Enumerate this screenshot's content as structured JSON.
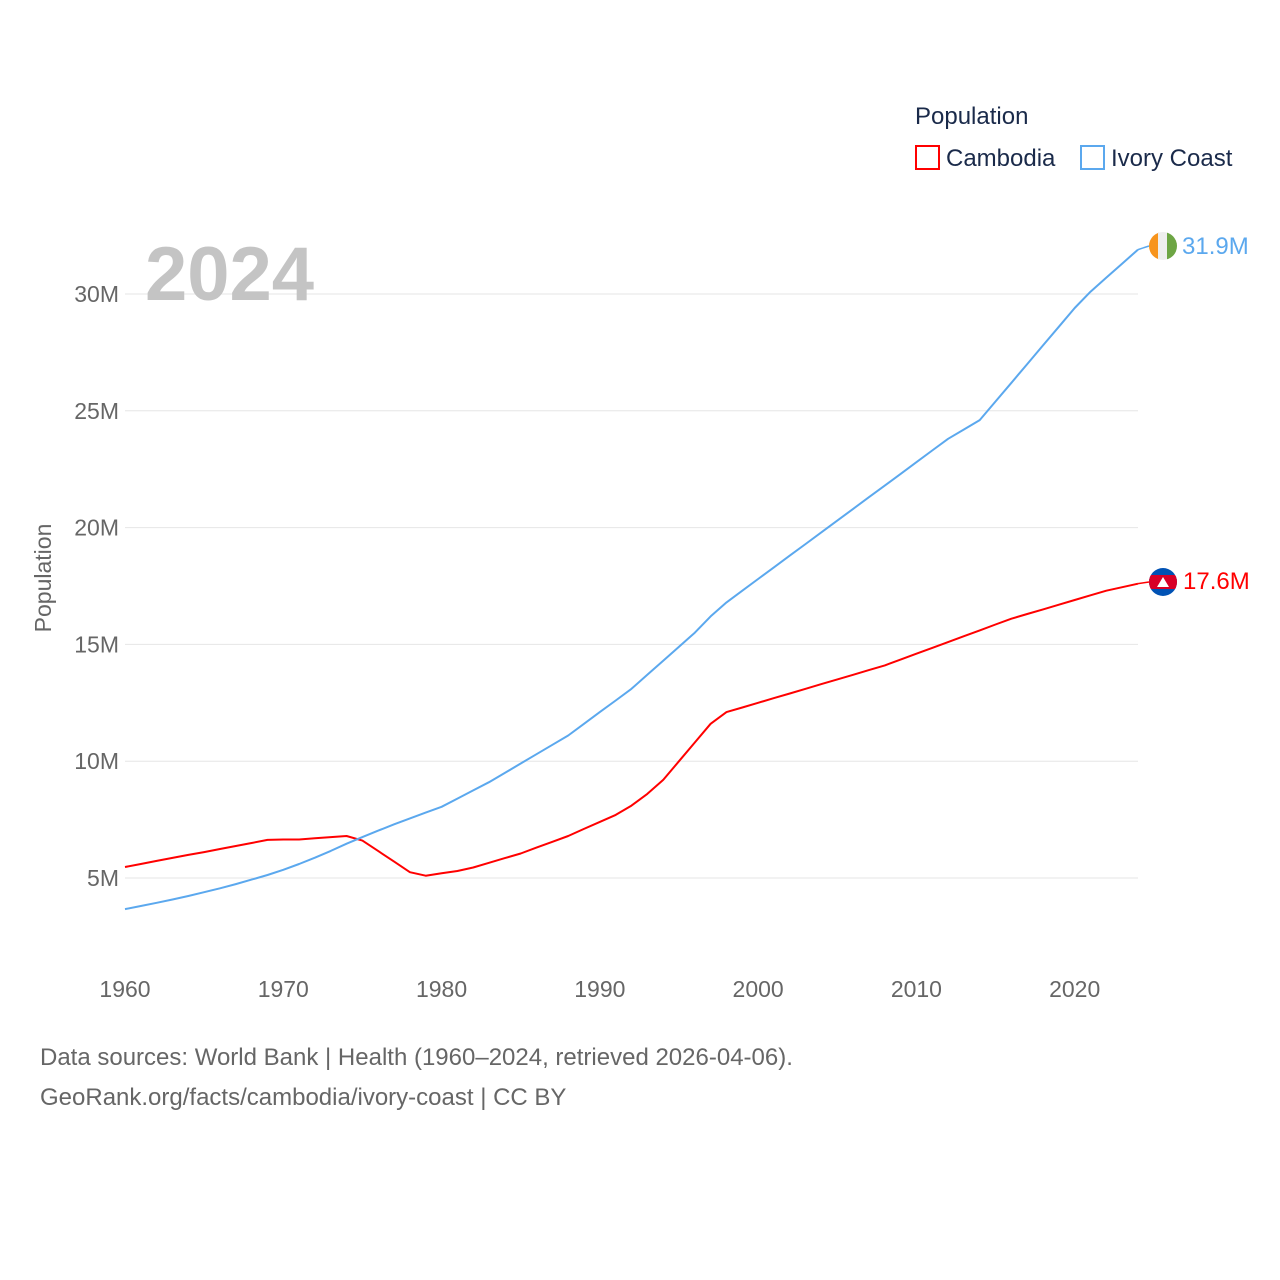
{
  "chart_data": {
    "type": "line",
    "title": "Population",
    "xlabel": "",
    "ylabel": "Population",
    "year_label": "2024",
    "xlim": [
      1960,
      2024
    ],
    "ylim": [
      0,
      32
    ],
    "x_ticks": [
      "1960",
      "1970",
      "1980",
      "1990",
      "2000",
      "2010",
      "2020"
    ],
    "x_tick_values": [
      1960,
      1970,
      1980,
      1990,
      2000,
      2010,
      2020
    ],
    "y_ticks": [
      "5M",
      "10M",
      "15M",
      "20M",
      "25M",
      "30M"
    ],
    "y_tick_values": [
      5,
      10,
      15,
      20,
      25,
      30
    ],
    "grid": true,
    "legend": {
      "title": "Population",
      "placement": "top-right"
    },
    "x_start": 1960,
    "series": [
      {
        "name": "Cambodia",
        "color": "#ff0000",
        "end_label": "17.6M",
        "flag": "cambodia-flag",
        "values": [
          5.47,
          5.6,
          5.73,
          5.86,
          5.99,
          6.11,
          6.24,
          6.37,
          6.5,
          6.63,
          6.65,
          6.65,
          6.7,
          6.75,
          6.8,
          6.6,
          6.15,
          5.7,
          5.25,
          5.1,
          5.2,
          5.3,
          5.45,
          5.65,
          5.85,
          6.05,
          6.3,
          6.55,
          6.8,
          7.1,
          7.4,
          7.7,
          8.1,
          8.6,
          9.2,
          10.0,
          10.8,
          11.6,
          12.1,
          12.3,
          12.5,
          12.7,
          12.9,
          13.1,
          13.3,
          13.5,
          13.7,
          13.9,
          14.1,
          14.35,
          14.6,
          14.85,
          15.1,
          15.35,
          15.6,
          15.85,
          16.1,
          16.3,
          16.5,
          16.7,
          16.9,
          17.1,
          17.3,
          17.45,
          17.6
        ]
      },
      {
        "name": "Ivory Coast",
        "color": "#5ba8ee",
        "end_label": "31.9M",
        "flag": "ivory-coast-flag",
        "values": [
          3.67,
          3.8,
          3.94,
          4.08,
          4.23,
          4.39,
          4.56,
          4.74,
          4.93,
          5.13,
          5.35,
          5.6,
          5.87,
          6.16,
          6.47,
          6.75,
          7.03,
          7.3,
          7.55,
          7.8,
          8.05,
          8.4,
          8.75,
          9.1,
          9.5,
          9.9,
          10.3,
          10.7,
          11.1,
          11.6,
          12.1,
          12.6,
          13.1,
          13.7,
          14.3,
          14.9,
          15.5,
          16.2,
          16.8,
          17.3,
          17.8,
          18.3,
          18.8,
          19.3,
          19.8,
          20.3,
          20.8,
          21.3,
          21.8,
          22.3,
          22.8,
          23.3,
          23.8,
          24.2,
          24.6,
          25.4,
          26.2,
          27.0,
          27.8,
          28.6,
          29.4,
          30.1,
          30.7,
          31.3,
          31.9
        ]
      }
    ]
  },
  "footer": {
    "line1": "Data sources: World Bank | Health (1960–2024, retrieved 2026-04-06).",
    "line2": "GeoRank.org/facts/cambodia/ivory-coast | CC BY"
  }
}
